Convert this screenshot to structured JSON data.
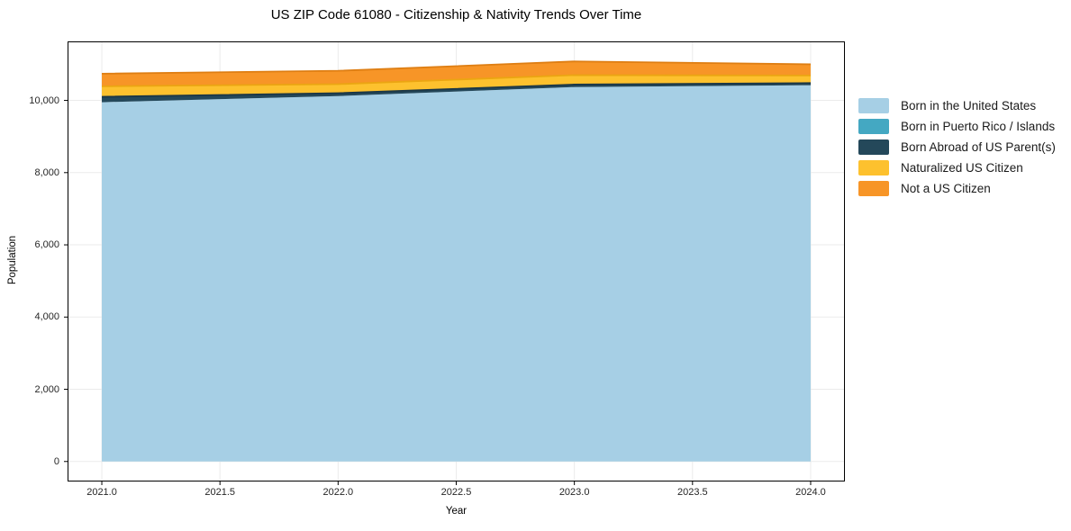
{
  "chart_data": {
    "type": "area",
    "stacked": true,
    "title": "US ZIP Code 61080 - Citizenship & Nativity Trends Over Time",
    "xlabel": "Year",
    "ylabel": "Population",
    "x": [
      2021,
      2022,
      2023,
      2024
    ],
    "series": [
      {
        "name": "Born in the United States",
        "color": "#A6CFE5",
        "edge": "#86BBD8",
        "values": [
          9950,
          10120,
          10370,
          10420
        ]
      },
      {
        "name": "Born in Puerto Rico / Islands",
        "color": "#44A8C2",
        "edge": "#2E8FA8",
        "values": [
          0,
          0,
          0,
          0
        ]
      },
      {
        "name": "Born Abroad of US Parent(s)",
        "color": "#24485A",
        "edge": "#1B3746",
        "values": [
          150,
          80,
          70,
          60
        ]
      },
      {
        "name": "Naturalized US Citizen",
        "color": "#FDC12E",
        "edge": "#EBA512",
        "values": [
          290,
          250,
          260,
          210
        ]
      },
      {
        "name": "Not a US Citizen",
        "color": "#F79527",
        "edge": "#DE7E13",
        "values": [
          350,
          370,
          380,
          310
        ]
      }
    ],
    "stack_totals": [
      10740,
      10820,
      11080,
      11000
    ],
    "xticks": {
      "values": [
        2021.0,
        2021.5,
        2022.0,
        2022.5,
        2023.0,
        2023.5,
        2024.0
      ],
      "labels": [
        "2021.0",
        "2021.5",
        "2022.0",
        "2022.5",
        "2023.0",
        "2023.5",
        "2024.0"
      ]
    },
    "yticks": {
      "values": [
        0,
        2000,
        4000,
        6000,
        8000,
        10000
      ],
      "labels": [
        "0",
        "2,000",
        "4,000",
        "6,000",
        "8,000",
        "10,000"
      ]
    },
    "xlim": [
      2020.855,
      2024.145
    ],
    "ylim": [
      -554,
      11634
    ],
    "grid": true,
    "grid_color": "#ebebeb",
    "spine_color": "#000000",
    "legend_position": "right"
  }
}
